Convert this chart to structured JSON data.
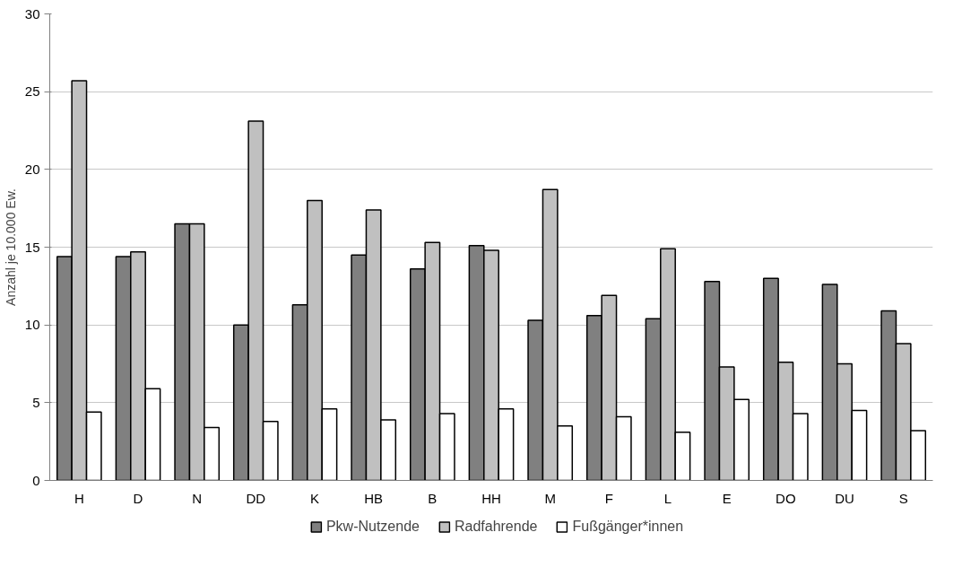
{
  "chart_data": {
    "type": "bar",
    "ylabel": "Anzahl je 10.000 Ew.",
    "categories": [
      "H",
      "D",
      "N",
      "DD",
      "K",
      "HB",
      "B",
      "HH",
      "M",
      "F",
      "L",
      "E",
      "DO",
      "DU",
      "S"
    ],
    "series": [
      {
        "name": "Pkw-Nutzende",
        "color": "#808080",
        "values": [
          14.4,
          14.4,
          16.5,
          10.0,
          11.3,
          14.5,
          13.6,
          15.1,
          10.3,
          10.6,
          10.4,
          12.8,
          13.0,
          12.6,
          10.9
        ]
      },
      {
        "name": "Radfahrende",
        "color": "#c0c0c0",
        "values": [
          25.7,
          14.7,
          16.5,
          23.1,
          18.0,
          17.4,
          15.3,
          14.8,
          18.7,
          11.9,
          14.9,
          7.3,
          7.6,
          7.5,
          8.8
        ]
      },
      {
        "name": "Fußgänger*innen",
        "color": "#ffffff",
        "values": [
          4.4,
          5.9,
          3.4,
          3.8,
          4.6,
          3.9,
          4.3,
          4.6,
          3.5,
          4.1,
          3.1,
          5.2,
          4.3,
          4.5,
          3.2
        ]
      }
    ],
    "ylim": [
      0,
      30
    ],
    "yticks": [
      0,
      5,
      10,
      15,
      20,
      25,
      30
    ],
    "grid": "y",
    "legend": "bottom"
  }
}
